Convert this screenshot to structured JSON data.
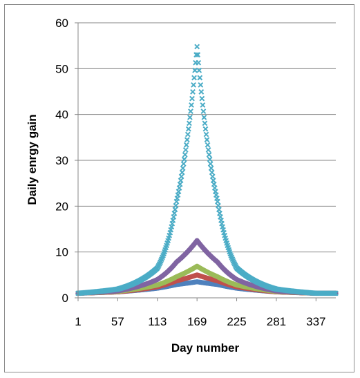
{
  "chart_data": {
    "type": "scatter",
    "title": "",
    "xlabel": "Day number",
    "ylabel": "Daily enrgy gain",
    "xlim": [
      1,
      365
    ],
    "ylim": [
      0,
      60
    ],
    "x_ticks": [
      1,
      57,
      113,
      169,
      225,
      281,
      337
    ],
    "y_ticks": [
      0,
      10,
      20,
      30,
      40,
      50,
      60
    ],
    "grid": "horizontal",
    "legend": "none",
    "series": [
      {
        "color": "#4f81bd",
        "marker": "circle",
        "peak_day": 169,
        "base": 1.0,
        "peak": 3.5,
        "values_sampled": {
          "x": [
            1,
            57,
            113,
            140,
            169,
            198,
            225,
            281,
            337,
            365
          ],
          "y": [
            1.0,
            1.3,
            2.1,
            2.9,
            3.5,
            2.9,
            2.1,
            1.3,
            1.0,
            1.0
          ]
        }
      },
      {
        "color": "#c0504d",
        "marker": "circle",
        "peak_day": 169,
        "base": 1.0,
        "peak": 5.0,
        "values_sampled": {
          "x": [
            1,
            57,
            113,
            140,
            169,
            198,
            225,
            281,
            337,
            365
          ],
          "y": [
            1.0,
            1.3,
            2.4,
            3.7,
            5.0,
            3.7,
            2.4,
            1.3,
            1.0,
            1.0
          ]
        }
      },
      {
        "color": "#9bbb59",
        "marker": "circle",
        "peak_day": 169,
        "base": 1.0,
        "peak": 6.9,
        "values_sampled": {
          "x": [
            1,
            57,
            113,
            140,
            169,
            198,
            225,
            281,
            337,
            365
          ],
          "y": [
            1.0,
            1.4,
            2.8,
            4.6,
            6.9,
            4.6,
            2.8,
            1.4,
            1.0,
            1.0
          ]
        }
      },
      {
        "color": "#8064a2",
        "marker": "circle",
        "peak_day": 169,
        "base": 1.0,
        "peak": 12.5,
        "values_sampled": {
          "x": [
            1,
            57,
            113,
            140,
            169,
            198,
            225,
            281,
            337,
            365
          ],
          "y": [
            1.0,
            1.5,
            4.0,
            7.8,
            12.5,
            7.8,
            4.0,
            1.5,
            1.0,
            1.0
          ]
        }
      },
      {
        "color": "#4bacc6",
        "marker": "x",
        "peak_day": 169,
        "base": 1.0,
        "peak": 54.8,
        "values_sampled": {
          "x": [
            1,
            57,
            113,
            140,
            169,
            198,
            225,
            281,
            337,
            365
          ],
          "y": [
            1.0,
            1.9,
            6.5,
            21.0,
            54.8,
            21.0,
            6.5,
            1.9,
            1.0,
            1.0
          ]
        }
      }
    ]
  }
}
